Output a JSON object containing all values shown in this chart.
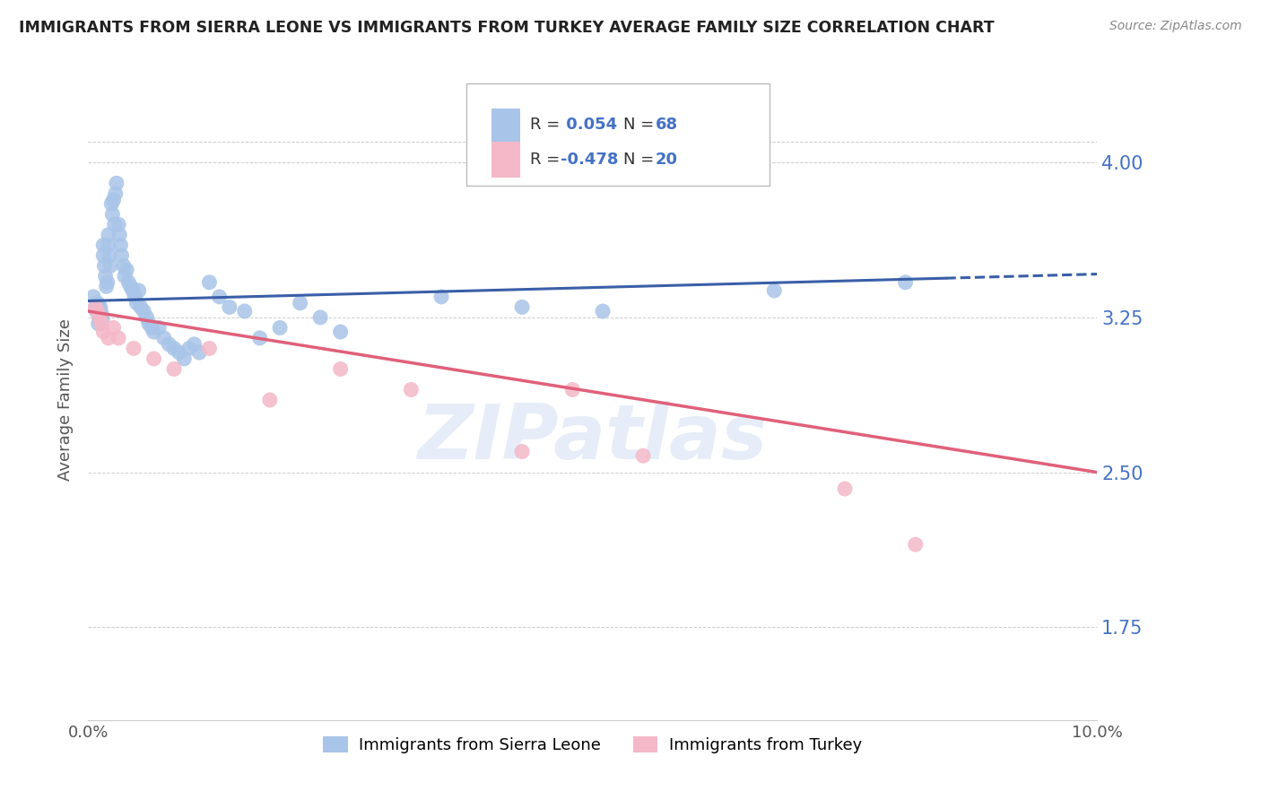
{
  "title": "IMMIGRANTS FROM SIERRA LEONE VS IMMIGRANTS FROM TURKEY AVERAGE FAMILY SIZE CORRELATION CHART",
  "source": "Source: ZipAtlas.com",
  "ylabel": "Average Family Size",
  "yticks": [
    1.75,
    2.5,
    3.25,
    4.0
  ],
  "xlim": [
    0.0,
    10.0
  ],
  "ylim": [
    1.3,
    4.4
  ],
  "sierra_leone_color": "#a8c4e8",
  "turkey_color": "#f4b8c8",
  "sierra_leone_line_color": "#3a5fa8",
  "turkey_line_color": "#e0607a",
  "R_sierra": 0.054,
  "N_sierra": 68,
  "R_turkey": -0.478,
  "N_turkey": 20,
  "legend_label_sierra": "Immigrants from Sierra Leone",
  "legend_label_turkey": "Immigrants from Turkey",
  "sl_x": [
    0.05,
    0.07,
    0.08,
    0.09,
    0.1,
    0.1,
    0.11,
    0.12,
    0.13,
    0.14,
    0.15,
    0.15,
    0.16,
    0.17,
    0.18,
    0.19,
    0.2,
    0.2,
    0.21,
    0.22,
    0.23,
    0.24,
    0.25,
    0.26,
    0.27,
    0.28,
    0.3,
    0.31,
    0.32,
    0.33,
    0.35,
    0.36,
    0.38,
    0.4,
    0.42,
    0.44,
    0.46,
    0.48,
    0.5,
    0.52,
    0.55,
    0.58,
    0.6,
    0.63,
    0.65,
    0.7,
    0.75,
    0.8,
    0.85,
    0.9,
    0.95,
    1.0,
    1.05,
    1.1,
    1.2,
    1.3,
    1.4,
    1.55,
    1.7,
    1.9,
    2.1,
    2.3,
    2.5,
    3.5,
    4.3,
    5.1,
    6.8,
    8.1
  ],
  "sl_y": [
    3.35,
    3.3,
    3.28,
    3.32,
    3.3,
    3.22,
    3.25,
    3.3,
    3.27,
    3.24,
    3.6,
    3.55,
    3.5,
    3.45,
    3.4,
    3.42,
    3.65,
    3.6,
    3.55,
    3.5,
    3.8,
    3.75,
    3.82,
    3.7,
    3.85,
    3.9,
    3.7,
    3.65,
    3.6,
    3.55,
    3.5,
    3.45,
    3.48,
    3.42,
    3.4,
    3.38,
    3.35,
    3.32,
    3.38,
    3.3,
    3.28,
    3.25,
    3.22,
    3.2,
    3.18,
    3.2,
    3.15,
    3.12,
    3.1,
    3.08,
    3.05,
    3.1,
    3.12,
    3.08,
    3.42,
    3.35,
    3.3,
    3.28,
    3.15,
    3.2,
    3.32,
    3.25,
    3.18,
    3.35,
    3.3,
    3.28,
    3.38,
    3.42
  ],
  "tr_x": [
    0.07,
    0.09,
    0.11,
    0.13,
    0.15,
    0.2,
    0.25,
    0.3,
    0.45,
    0.65,
    0.85,
    1.2,
    1.8,
    2.5,
    3.2,
    4.3,
    4.8,
    5.5,
    7.5,
    8.2
  ],
  "tr_y": [
    3.3,
    3.28,
    3.25,
    3.22,
    3.18,
    3.15,
    3.2,
    3.15,
    3.1,
    3.05,
    3.0,
    3.1,
    2.85,
    3.0,
    2.9,
    2.6,
    2.9,
    2.58,
    2.42,
    2.15
  ]
}
